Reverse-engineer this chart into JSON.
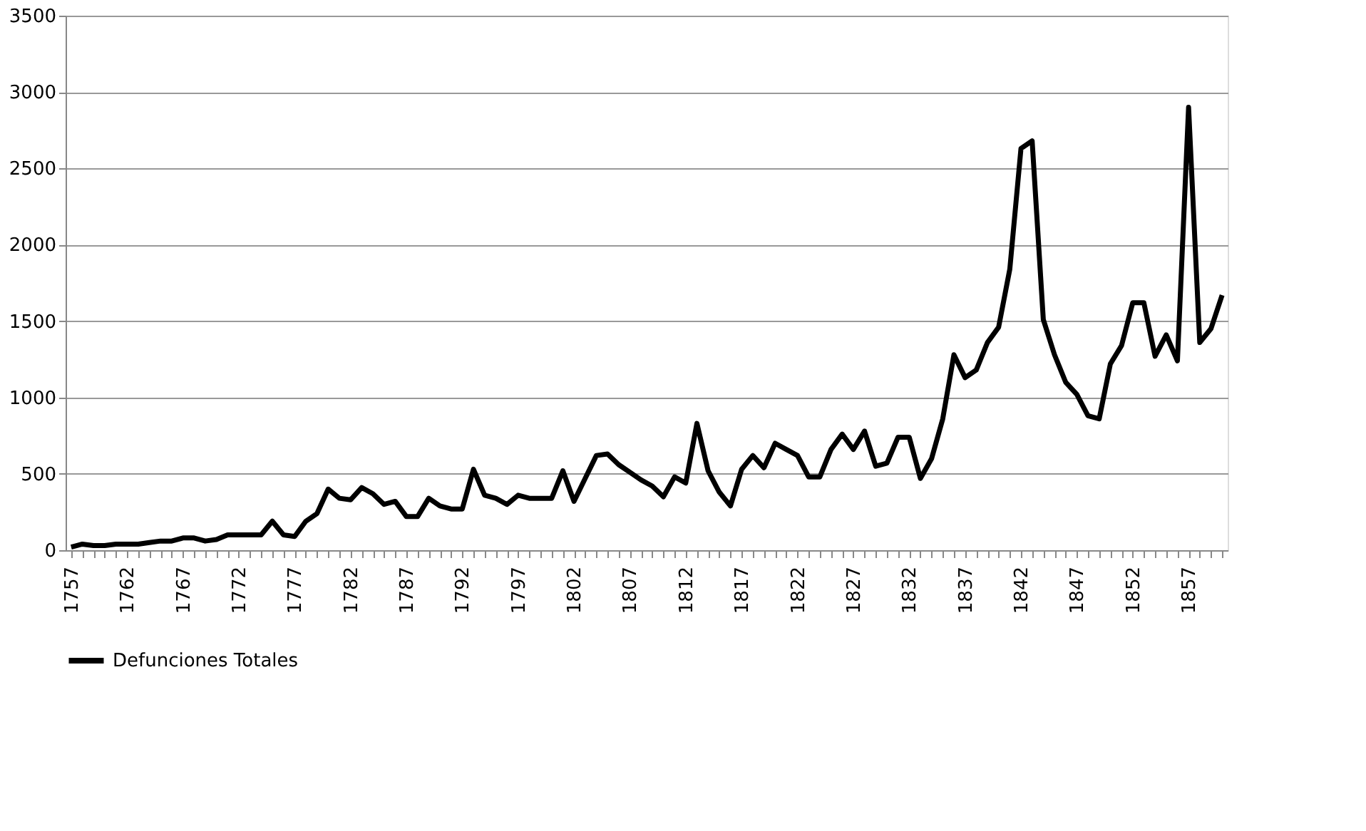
{
  "chart_data": {
    "type": "line",
    "categories": [
      "1757",
      null,
      null,
      null,
      null,
      "1762",
      null,
      null,
      null,
      null,
      "1767",
      null,
      null,
      null,
      null,
      "1772",
      null,
      null,
      null,
      null,
      "1777",
      null,
      null,
      null,
      null,
      "1782",
      null,
      null,
      null,
      null,
      "1787",
      null,
      null,
      null,
      null,
      "1792",
      null,
      null,
      null,
      null,
      "1797",
      null,
      null,
      null,
      null,
      "1802",
      null,
      null,
      null,
      null,
      "1807",
      null,
      null,
      null,
      null,
      "1812",
      null,
      null,
      null,
      null,
      "1817",
      null,
      null,
      null,
      null,
      "1822",
      null,
      null,
      null,
      null,
      "1827",
      null,
      null,
      null,
      null,
      "1832",
      null,
      null,
      null,
      null,
      "1837",
      null,
      null,
      null,
      null,
      "1842",
      null,
      null,
      null,
      null,
      "1847",
      null,
      null,
      null,
      null,
      "1852",
      null,
      null,
      null,
      null,
      "1857",
      null,
      null,
      null
    ],
    "series": [
      {
        "name": "Defunciones Totales",
        "color": "#000000",
        "values": [
          20,
          40,
          30,
          30,
          40,
          40,
          40,
          50,
          60,
          60,
          80,
          80,
          60,
          70,
          100,
          100,
          100,
          100,
          190,
          100,
          90,
          190,
          240,
          400,
          340,
          330,
          410,
          370,
          300,
          320,
          220,
          220,
          340,
          290,
          270,
          270,
          530,
          360,
          340,
          300,
          360,
          340,
          340,
          340,
          520,
          320,
          470,
          620,
          630,
          560,
          510,
          460,
          420,
          350,
          480,
          440,
          830,
          520,
          380,
          290,
          530,
          620,
          540,
          700,
          660,
          620,
          480,
          480,
          660,
          760,
          660,
          780,
          550,
          570,
          740,
          740,
          470,
          600,
          860,
          1280,
          1130,
          1180,
          1360,
          1460,
          1840,
          2630,
          2680,
          1510,
          1280,
          1100,
          1020,
          880,
          860,
          1220,
          1340,
          1620,
          1620,
          1270,
          1410,
          1240,
          2900,
          1360,
          1450,
          1670
        ]
      }
    ],
    "ylim": [
      0,
      3500
    ],
    "yticks": [
      0,
      500,
      1000,
      1500,
      2000,
      2500,
      3000,
      3500
    ],
    "grid": "y",
    "legend": "bottom",
    "marker": "none",
    "line_style": "solid"
  }
}
